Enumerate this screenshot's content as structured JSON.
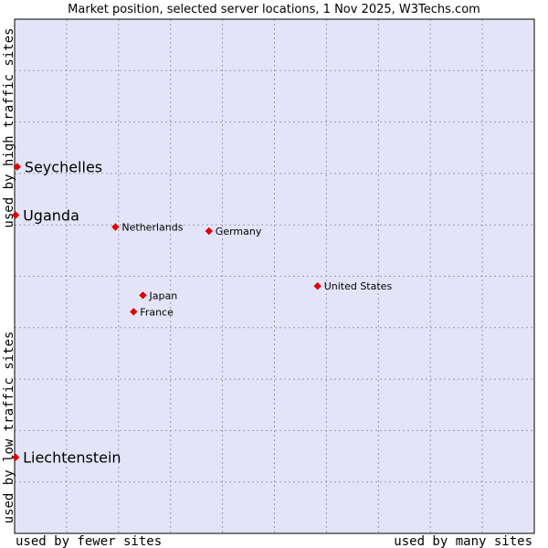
{
  "chart_data": {
    "type": "scatter",
    "title": "Market position, selected server locations, 1 Nov 2025, W3Techs.com",
    "xlabel_left": "used by fewer sites",
    "xlabel_right": "used by many sites",
    "ylabel_top": "used by high traffic sites",
    "ylabel_bottom": "used by low traffic sites",
    "xlim": [
      0,
      100
    ],
    "ylim": [
      0,
      100
    ],
    "grid": true,
    "colors": {
      "plot_background": "#e4e4f8",
      "frame": "#000000",
      "grid": "#9a9ab0",
      "point": "#e00000"
    },
    "points": [
      {
        "label": "Seychelles",
        "x": 0.5,
        "y": 71.3,
        "highlight": true
      },
      {
        "label": "Uganda",
        "x": 0.2,
        "y": 61.9,
        "highlight": true
      },
      {
        "label": "Netherlands",
        "x": 19.4,
        "y": 59.6,
        "highlight": false
      },
      {
        "label": "Germany",
        "x": 37.4,
        "y": 58.8,
        "highlight": false
      },
      {
        "label": "United States",
        "x": 58.3,
        "y": 48.1,
        "highlight": false
      },
      {
        "label": "Japan",
        "x": 24.7,
        "y": 46.3,
        "highlight": false
      },
      {
        "label": "France",
        "x": 22.9,
        "y": 43.1,
        "highlight": false
      },
      {
        "label": "Liechtenstein",
        "x": 0.2,
        "y": 14.8,
        "highlight": true
      }
    ]
  }
}
